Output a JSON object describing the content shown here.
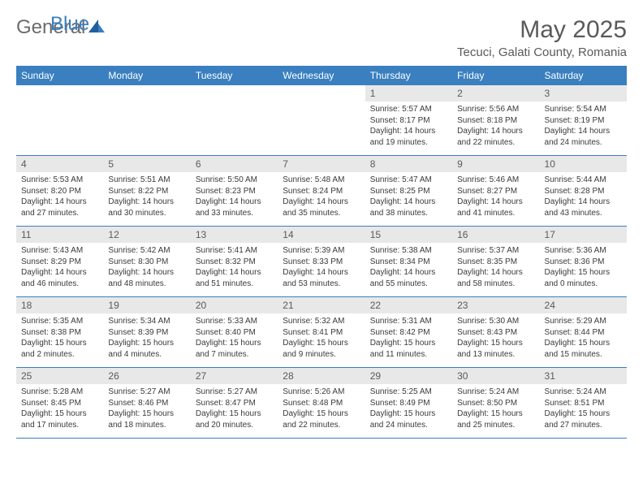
{
  "logo": {
    "general": "General",
    "blue": "Blue"
  },
  "title": "May 2025",
  "location": "Tecuci, Galati County, Romania",
  "colors": {
    "header_bg": "#3a7fbf",
    "header_text": "#ffffff",
    "daynum_bg": "#e8e8e8",
    "border": "#3a7fbf",
    "text": "#3a3a3a",
    "title_text": "#5a5a5a"
  },
  "day_names": [
    "Sunday",
    "Monday",
    "Tuesday",
    "Wednesday",
    "Thursday",
    "Friday",
    "Saturday"
  ],
  "weeks": [
    [
      {
        "day": "",
        "sunrise": "",
        "sunset": "",
        "daylight": ""
      },
      {
        "day": "",
        "sunrise": "",
        "sunset": "",
        "daylight": ""
      },
      {
        "day": "",
        "sunrise": "",
        "sunset": "",
        "daylight": ""
      },
      {
        "day": "",
        "sunrise": "",
        "sunset": "",
        "daylight": ""
      },
      {
        "day": "1",
        "sunrise": "Sunrise: 5:57 AM",
        "sunset": "Sunset: 8:17 PM",
        "daylight": "Daylight: 14 hours and 19 minutes."
      },
      {
        "day": "2",
        "sunrise": "Sunrise: 5:56 AM",
        "sunset": "Sunset: 8:18 PM",
        "daylight": "Daylight: 14 hours and 22 minutes."
      },
      {
        "day": "3",
        "sunrise": "Sunrise: 5:54 AM",
        "sunset": "Sunset: 8:19 PM",
        "daylight": "Daylight: 14 hours and 24 minutes."
      }
    ],
    [
      {
        "day": "4",
        "sunrise": "Sunrise: 5:53 AM",
        "sunset": "Sunset: 8:20 PM",
        "daylight": "Daylight: 14 hours and 27 minutes."
      },
      {
        "day": "5",
        "sunrise": "Sunrise: 5:51 AM",
        "sunset": "Sunset: 8:22 PM",
        "daylight": "Daylight: 14 hours and 30 minutes."
      },
      {
        "day": "6",
        "sunrise": "Sunrise: 5:50 AM",
        "sunset": "Sunset: 8:23 PM",
        "daylight": "Daylight: 14 hours and 33 minutes."
      },
      {
        "day": "7",
        "sunrise": "Sunrise: 5:48 AM",
        "sunset": "Sunset: 8:24 PM",
        "daylight": "Daylight: 14 hours and 35 minutes."
      },
      {
        "day": "8",
        "sunrise": "Sunrise: 5:47 AM",
        "sunset": "Sunset: 8:25 PM",
        "daylight": "Daylight: 14 hours and 38 minutes."
      },
      {
        "day": "9",
        "sunrise": "Sunrise: 5:46 AM",
        "sunset": "Sunset: 8:27 PM",
        "daylight": "Daylight: 14 hours and 41 minutes."
      },
      {
        "day": "10",
        "sunrise": "Sunrise: 5:44 AM",
        "sunset": "Sunset: 8:28 PM",
        "daylight": "Daylight: 14 hours and 43 minutes."
      }
    ],
    [
      {
        "day": "11",
        "sunrise": "Sunrise: 5:43 AM",
        "sunset": "Sunset: 8:29 PM",
        "daylight": "Daylight: 14 hours and 46 minutes."
      },
      {
        "day": "12",
        "sunrise": "Sunrise: 5:42 AM",
        "sunset": "Sunset: 8:30 PM",
        "daylight": "Daylight: 14 hours and 48 minutes."
      },
      {
        "day": "13",
        "sunrise": "Sunrise: 5:41 AM",
        "sunset": "Sunset: 8:32 PM",
        "daylight": "Daylight: 14 hours and 51 minutes."
      },
      {
        "day": "14",
        "sunrise": "Sunrise: 5:39 AM",
        "sunset": "Sunset: 8:33 PM",
        "daylight": "Daylight: 14 hours and 53 minutes."
      },
      {
        "day": "15",
        "sunrise": "Sunrise: 5:38 AM",
        "sunset": "Sunset: 8:34 PM",
        "daylight": "Daylight: 14 hours and 55 minutes."
      },
      {
        "day": "16",
        "sunrise": "Sunrise: 5:37 AM",
        "sunset": "Sunset: 8:35 PM",
        "daylight": "Daylight: 14 hours and 58 minutes."
      },
      {
        "day": "17",
        "sunrise": "Sunrise: 5:36 AM",
        "sunset": "Sunset: 8:36 PM",
        "daylight": "Daylight: 15 hours and 0 minutes."
      }
    ],
    [
      {
        "day": "18",
        "sunrise": "Sunrise: 5:35 AM",
        "sunset": "Sunset: 8:38 PM",
        "daylight": "Daylight: 15 hours and 2 minutes."
      },
      {
        "day": "19",
        "sunrise": "Sunrise: 5:34 AM",
        "sunset": "Sunset: 8:39 PM",
        "daylight": "Daylight: 15 hours and 4 minutes."
      },
      {
        "day": "20",
        "sunrise": "Sunrise: 5:33 AM",
        "sunset": "Sunset: 8:40 PM",
        "daylight": "Daylight: 15 hours and 7 minutes."
      },
      {
        "day": "21",
        "sunrise": "Sunrise: 5:32 AM",
        "sunset": "Sunset: 8:41 PM",
        "daylight": "Daylight: 15 hours and 9 minutes."
      },
      {
        "day": "22",
        "sunrise": "Sunrise: 5:31 AM",
        "sunset": "Sunset: 8:42 PM",
        "daylight": "Daylight: 15 hours and 11 minutes."
      },
      {
        "day": "23",
        "sunrise": "Sunrise: 5:30 AM",
        "sunset": "Sunset: 8:43 PM",
        "daylight": "Daylight: 15 hours and 13 minutes."
      },
      {
        "day": "24",
        "sunrise": "Sunrise: 5:29 AM",
        "sunset": "Sunset: 8:44 PM",
        "daylight": "Daylight: 15 hours and 15 minutes."
      }
    ],
    [
      {
        "day": "25",
        "sunrise": "Sunrise: 5:28 AM",
        "sunset": "Sunset: 8:45 PM",
        "daylight": "Daylight: 15 hours and 17 minutes."
      },
      {
        "day": "26",
        "sunrise": "Sunrise: 5:27 AM",
        "sunset": "Sunset: 8:46 PM",
        "daylight": "Daylight: 15 hours and 18 minutes."
      },
      {
        "day": "27",
        "sunrise": "Sunrise: 5:27 AM",
        "sunset": "Sunset: 8:47 PM",
        "daylight": "Daylight: 15 hours and 20 minutes."
      },
      {
        "day": "28",
        "sunrise": "Sunrise: 5:26 AM",
        "sunset": "Sunset: 8:48 PM",
        "daylight": "Daylight: 15 hours and 22 minutes."
      },
      {
        "day": "29",
        "sunrise": "Sunrise: 5:25 AM",
        "sunset": "Sunset: 8:49 PM",
        "daylight": "Daylight: 15 hours and 24 minutes."
      },
      {
        "day": "30",
        "sunrise": "Sunrise: 5:24 AM",
        "sunset": "Sunset: 8:50 PM",
        "daylight": "Daylight: 15 hours and 25 minutes."
      },
      {
        "day": "31",
        "sunrise": "Sunrise: 5:24 AM",
        "sunset": "Sunset: 8:51 PM",
        "daylight": "Daylight: 15 hours and 27 minutes."
      }
    ]
  ]
}
